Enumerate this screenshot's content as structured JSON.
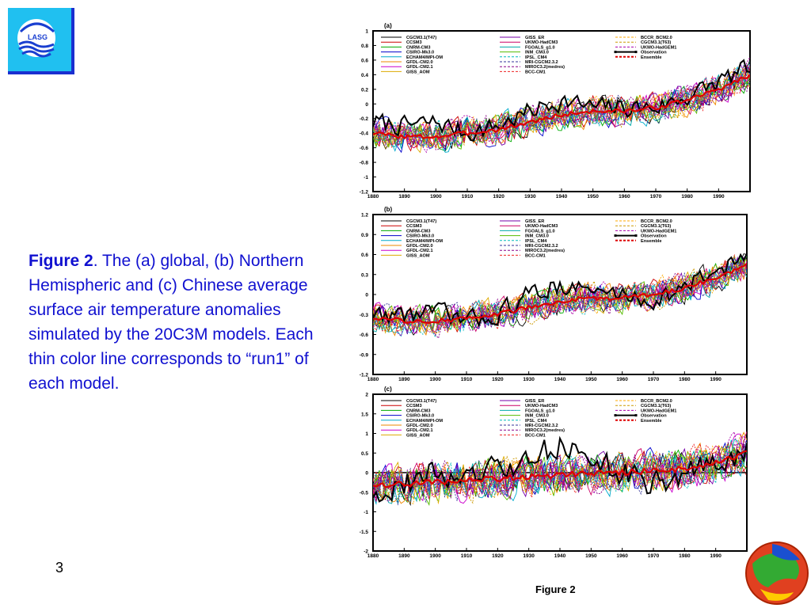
{
  "caption": {
    "bold": "Figure 2",
    "text": ". The (a) global, (b) Northern Hemispheric and (c) Chinese average surface air temperature anomalies simulated by the 20C3M models. Each thin color line corresponds to “run1” of each model."
  },
  "logo_text": "LASG",
  "page_number": "3",
  "figure_label": "Figure 2",
  "colors": {
    "logo_bg": "#20c0f0",
    "logo_border": "#1a2fd0",
    "caption": "#1010d0"
  },
  "legend": [
    {
      "name": "CGCM3.1(T47)",
      "color": "#000000",
      "style": "solid"
    },
    {
      "name": "CCSM3",
      "color": "#cc0000",
      "style": "solid"
    },
    {
      "name": "CNRM-CM3",
      "color": "#00aa00",
      "style": "solid"
    },
    {
      "name": "CSIRO-Mk3.0",
      "color": "#0000cc",
      "style": "solid"
    },
    {
      "name": "ECHAM4/MPI-OM",
      "color": "#00aacc",
      "style": "solid"
    },
    {
      "name": "GFDL-CM2.0",
      "color": "#ee8800",
      "style": "solid"
    },
    {
      "name": "GFDL-CM2.1",
      "color": "#cc00cc",
      "style": "solid"
    },
    {
      "name": "GISS_AOM",
      "color": "#ddaa00",
      "style": "solid"
    },
    {
      "name": "GISS_ER",
      "color": "#7700aa",
      "style": "solid"
    },
    {
      "name": "UKMO-HadCM3",
      "color": "#cc0066",
      "style": "solid"
    },
    {
      "name": "FGOALS_g1.0",
      "color": "#00aaaa",
      "style": "solid"
    },
    {
      "name": "INM_CM3.0",
      "color": "#55bb00",
      "style": "solid"
    },
    {
      "name": "IPSL_CM4",
      "color": "#00bbbb",
      "style": "dash"
    },
    {
      "name": "MRI-CGCM2.3.2",
      "color": "#333399",
      "style": "dash"
    },
    {
      "name": "MIROC3.2(medres)",
      "color": "#880088",
      "style": "dash"
    },
    {
      "name": "BCC-CM1",
      "color": "#ee2222",
      "style": "dash"
    },
    {
      "name": "BCCR_BCM2.0",
      "color": "#ffaa00",
      "style": "dash"
    },
    {
      "name": "CGCM3.1(T63)",
      "color": "#cc9900",
      "style": "dash"
    },
    {
      "name": "UKMO-HadGEM1",
      "color": "#aa00aa",
      "style": "dash"
    },
    {
      "name": "Observation",
      "color": "#000000",
      "style": "obs"
    },
    {
      "name": "Ensemble",
      "color": "#dd0000",
      "style": "ens"
    }
  ],
  "chart_data": [
    {
      "panel_label": "(a)",
      "type": "line",
      "x_range": [
        1880,
        2000
      ],
      "x_ticks": [
        "1880",
        "1890",
        "1900",
        "1910",
        "1920",
        "1930",
        "1940",
        "1950",
        "1960",
        "1970",
        "1980",
        "1990"
      ],
      "ylim": [
        -1.2,
        1
      ],
      "y_ticks": [
        "1",
        "0.8",
        "0.6",
        "0.4",
        "0.2",
        "0",
        "-0.2",
        "-0.4",
        "-0.6",
        "-0.8",
        "-1",
        "-1.2"
      ],
      "observation_anchors": {
        "years": [
          1880,
          1890,
          1900,
          1910,
          1920,
          1930,
          1940,
          1950,
          1960,
          1970,
          1980,
          1990,
          2000
        ],
        "values": [
          -0.25,
          -0.3,
          -0.25,
          -0.4,
          -0.3,
          -0.1,
          0.05,
          -0.05,
          -0.05,
          -0.05,
          0.1,
          0.3,
          0.5
        ]
      },
      "ensemble_anchors": {
        "years": [
          1880,
          1890,
          1900,
          1910,
          1920,
          1930,
          1940,
          1950,
          1960,
          1970,
          1980,
          1990,
          2000
        ],
        "values": [
          -0.4,
          -0.45,
          -0.45,
          -0.4,
          -0.35,
          -0.25,
          -0.15,
          -0.1,
          -0.1,
          -0.05,
          0.05,
          0.2,
          0.4
        ]
      }
    },
    {
      "panel_label": "(b)",
      "type": "line",
      "x_range": [
        1880,
        2000
      ],
      "x_ticks": [
        "1880",
        "1890",
        "1900",
        "1910",
        "1920",
        "1930",
        "1940",
        "1950",
        "1960",
        "1970",
        "1980",
        "1990"
      ],
      "ylim": [
        -1.2,
        1.2
      ],
      "y_ticks": [
        "1.2",
        "0.9",
        "0.6",
        "0.3",
        "0",
        "-0.3",
        "-0.6",
        "-0.9",
        "-1.2"
      ],
      "observation_anchors": {
        "years": [
          1880,
          1890,
          1900,
          1910,
          1920,
          1930,
          1940,
          1950,
          1960,
          1970,
          1980,
          1990,
          2000
        ],
        "values": [
          -0.3,
          -0.3,
          -0.25,
          -0.4,
          -0.3,
          0.0,
          0.15,
          0.05,
          0.0,
          -0.1,
          0.1,
          0.35,
          0.6
        ]
      },
      "ensemble_anchors": {
        "years": [
          1880,
          1890,
          1900,
          1910,
          1920,
          1930,
          1940,
          1950,
          1960,
          1970,
          1980,
          1990,
          2000
        ],
        "values": [
          -0.35,
          -0.4,
          -0.4,
          -0.35,
          -0.3,
          -0.2,
          -0.1,
          -0.05,
          -0.05,
          0.0,
          0.1,
          0.25,
          0.45
        ]
      }
    },
    {
      "panel_label": "(c)",
      "type": "line",
      "x_range": [
        1880,
        2000
      ],
      "x_ticks": [
        "1880",
        "1890",
        "1900",
        "1910",
        "1920",
        "1930",
        "1940",
        "1950",
        "1960",
        "1970",
        "1980",
        "1990"
      ],
      "ylim": [
        -2,
        2
      ],
      "y_ticks": [
        "2",
        "1.5",
        "1",
        "0.5",
        "0",
        "-0.5",
        "-1",
        "-1.5",
        "-2"
      ],
      "observation_anchors": {
        "years": [
          1880,
          1890,
          1900,
          1910,
          1920,
          1930,
          1940,
          1950,
          1960,
          1970,
          1980,
          1990,
          2000
        ],
        "values": [
          -0.5,
          -0.3,
          0.0,
          -0.2,
          0.1,
          0.2,
          0.8,
          0.3,
          0.0,
          -0.3,
          0.0,
          0.2,
          0.5
        ]
      },
      "ensemble_anchors": {
        "years": [
          1880,
          1890,
          1900,
          1910,
          1920,
          1930,
          1940,
          1950,
          1960,
          1970,
          1980,
          1990,
          2000
        ],
        "values": [
          -0.3,
          -0.3,
          -0.25,
          -0.2,
          -0.15,
          -0.1,
          -0.05,
          0.0,
          0.0,
          0.05,
          0.1,
          0.25,
          0.5
        ]
      }
    }
  ]
}
